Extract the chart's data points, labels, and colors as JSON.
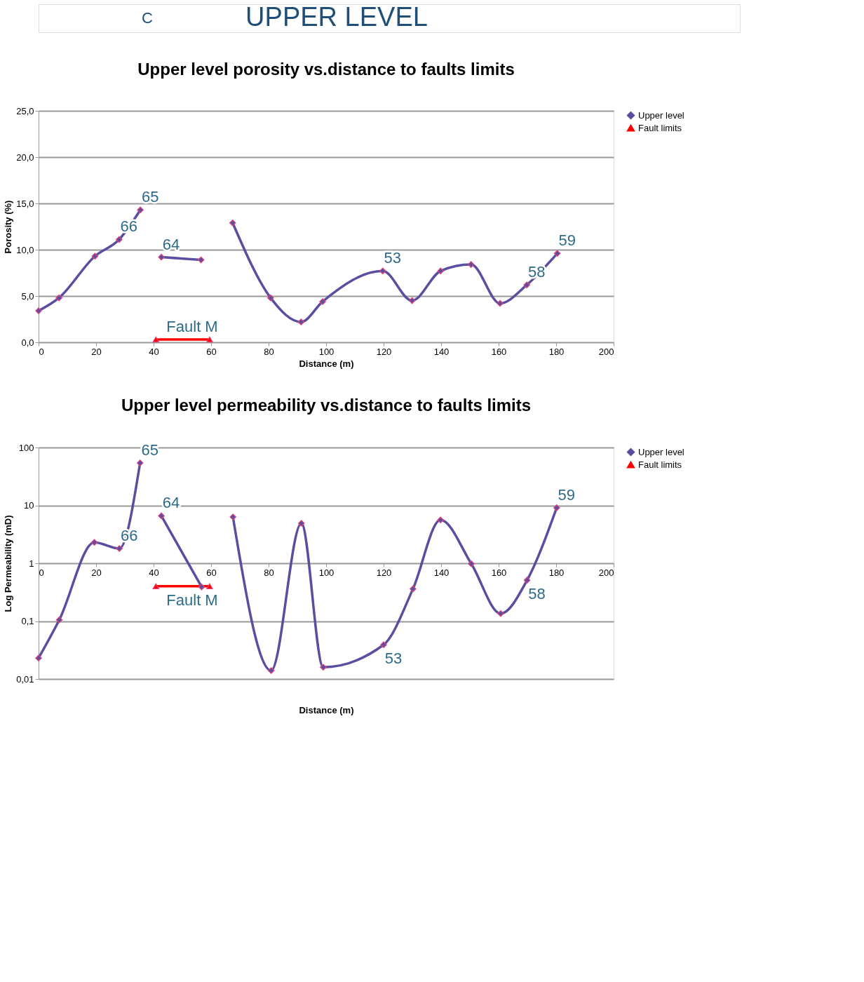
{
  "chart_data": [
    {
      "type": "line",
      "title": "Upper level porosity vs.distance to faults limits",
      "xlabel": "Distance (m)",
      "ylabel": "Porosity (%)",
      "annotations": [
        "C",
        "UPPER LEVEL",
        {
          "text": "65",
          "x": 35.4,
          "y": 14.3
        },
        {
          "text": "66",
          "x": 28.0,
          "y": 11.1
        },
        {
          "text": "64",
          "x": 42.7,
          "y": 9.2
        },
        {
          "text": "53",
          "x": 119.7,
          "y": 7.7
        },
        {
          "text": "58",
          "x": 169.8,
          "y": 6.2
        },
        {
          "text": "59",
          "x": 180.4,
          "y": 9.6
        },
        {
          "text": "Fault M",
          "x": 50,
          "y": 0.3
        }
      ],
      "series": [
        {
          "name": "Upper level",
          "color": "#5b4ea0",
          "marker": "diamond",
          "x": [
            0,
            7.1,
            19.6,
            28.0,
            35.4,
            39,
            42.7,
            56.5,
            62,
            67.5,
            80.7,
            91.3,
            98.8,
            119.7,
            129.9,
            139.8,
            150.4,
            160.5,
            169.8,
            180.4
          ],
          "values": [
            3.4,
            4.8,
            9.3,
            11.1,
            14.3,
            null,
            9.2,
            8.9,
            null,
            12.9,
            4.8,
            2.2,
            4.4,
            7.7,
            4.5,
            7.7,
            8.4,
            4.2,
            6.2,
            9.6
          ]
        },
        {
          "name": "Fault limits",
          "color": "#ff0000",
          "marker": "triangle",
          "x": [
            40.8,
            59.5
          ],
          "values": [
            0.3,
            0.3
          ]
        }
      ],
      "xlim": [
        0,
        200
      ],
      "xticks": [
        0,
        20,
        40,
        60,
        80,
        100,
        120,
        140,
        160,
        180,
        200
      ],
      "ylim": [
        0,
        25
      ],
      "yticks": [
        {
          "value": 0,
          "label": "0,0"
        },
        {
          "value": 5,
          "label": "5,0"
        },
        {
          "value": 10,
          "label": "10,0"
        },
        {
          "value": 15,
          "label": "15,0"
        },
        {
          "value": 20,
          "label": "20,0"
        },
        {
          "value": 25,
          "label": "25,0"
        }
      ],
      "grid": "y",
      "legend": "right"
    },
    {
      "type": "line",
      "title": "Upper level permeability vs.distance to faults limits",
      "xlabel": "Distance (m)",
      "ylabel": "Log Permeability (mD)",
      "annotations": [
        {
          "text": "65",
          "x": 35.3,
          "y": 54
        },
        {
          "text": "66",
          "x": 28.1,
          "y": 1.8
        },
        {
          "text": "64",
          "x": 42.7,
          "y": 6.6
        },
        {
          "text": "53",
          "x": 120.0,
          "y": 0.039
        },
        {
          "text": "58",
          "x": 169.9,
          "y": 0.51
        },
        {
          "text": "59",
          "x": 180.2,
          "y": 9.1
        },
        {
          "text": "Fault M",
          "x": 50,
          "y": 0.4
        }
      ],
      "series": [
        {
          "name": "Upper level",
          "color": "#5b4ea0",
          "marker": "diamond",
          "x": [
            0,
            7.2,
            19.4,
            28.1,
            35.3,
            39,
            42.7,
            56.7,
            62,
            67.6,
            80.9,
            91.4,
            99.0,
            120.0,
            130.2,
            139.8,
            150.5,
            160.7,
            169.9,
            180.2
          ],
          "values": [
            0.023,
            0.105,
            2.3,
            1.8,
            54,
            null,
            6.6,
            0.39,
            null,
            6.3,
            0.014,
            4.9,
            0.016,
            0.039,
            0.36,
            5.6,
            0.98,
            0.135,
            0.51,
            9.1
          ]
        },
        {
          "name": "Fault limits",
          "color": "#ff0000",
          "marker": "triangle",
          "x": [
            40.8,
            59.5
          ],
          "values": [
            0.4,
            0.4
          ]
        }
      ],
      "xlim": [
        0,
        200
      ],
      "xticks": [
        0,
        20,
        40,
        60,
        80,
        100,
        120,
        140,
        160,
        180,
        200
      ],
      "ylim": [
        0.01,
        100
      ],
      "yticks": [
        {
          "value": 0.01,
          "label": "0,01"
        },
        {
          "value": 0.1,
          "label": "0,1"
        },
        1,
        10,
        100
      ],
      "log": true,
      "grid": "y",
      "legend": "right"
    }
  ]
}
